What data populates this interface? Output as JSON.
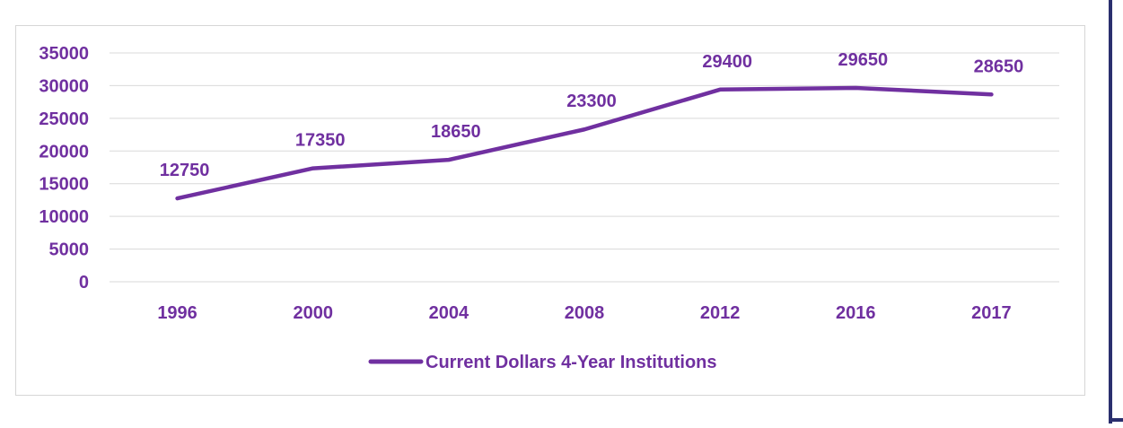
{
  "chart_data": {
    "type": "line",
    "categories": [
      "1996",
      "2000",
      "2004",
      "2008",
      "2012",
      "2016",
      "2017"
    ],
    "series": [
      {
        "name": "Current Dollars 4-Year Institutions",
        "values": [
          12750,
          17350,
          18650,
          23300,
          29400,
          29650,
          28650
        ]
      }
    ],
    "data_labels": [
      "12750",
      "17350",
      "18650",
      "23300",
      "29400",
      "29650",
      "28650"
    ],
    "y_ticks": [
      "0",
      "5000",
      "10000",
      "15000",
      "20000",
      "25000",
      "30000",
      "35000"
    ],
    "ylim": [
      0,
      35000
    ],
    "grid": true,
    "legend_position": "bottom",
    "colors": {
      "series": "#7030a0",
      "grid": "#d9d9d9",
      "frame": "#d6d6d6",
      "side_bar": "#2a2f6e"
    }
  }
}
